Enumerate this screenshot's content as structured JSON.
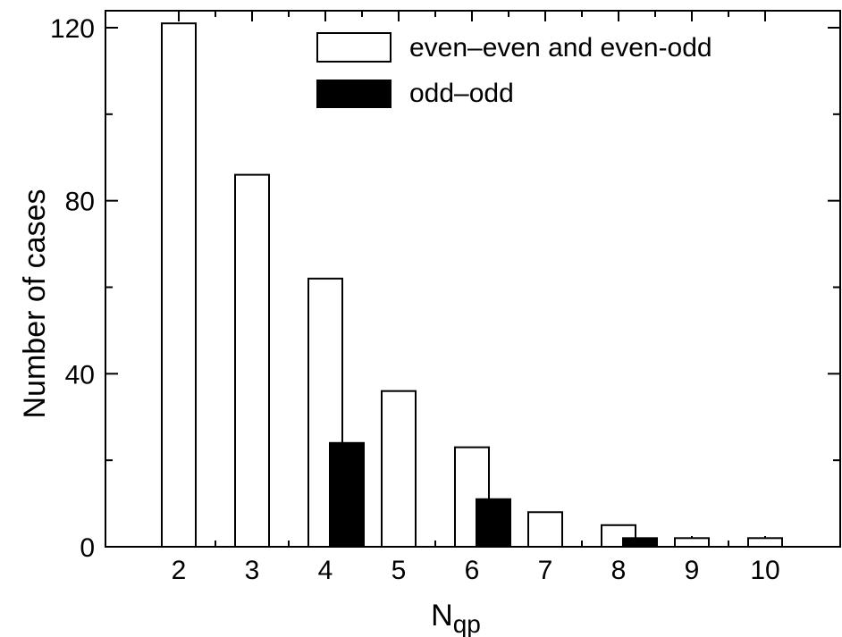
{
  "chart_data": {
    "type": "bar",
    "xlabel": "N",
    "xlabel_sub": "qp",
    "ylabel": "Number of cases",
    "ylim": [
      0,
      120
    ],
    "yticks": [
      0,
      40,
      80,
      120
    ],
    "categories": [
      "2",
      "3",
      "4",
      "5",
      "6",
      "7",
      "8",
      "9",
      "10"
    ],
    "series": [
      {
        "name": "even–even and even-odd",
        "fill": "#ffffff",
        "values": [
          121,
          86,
          62,
          36,
          23,
          8,
          5,
          2,
          2
        ]
      },
      {
        "name": "odd–odd",
        "fill": "#000000",
        "values": [
          0,
          0,
          24,
          0,
          11,
          0,
          2,
          0,
          0
        ]
      }
    ],
    "legend_position": "top-right",
    "grid": false
  }
}
